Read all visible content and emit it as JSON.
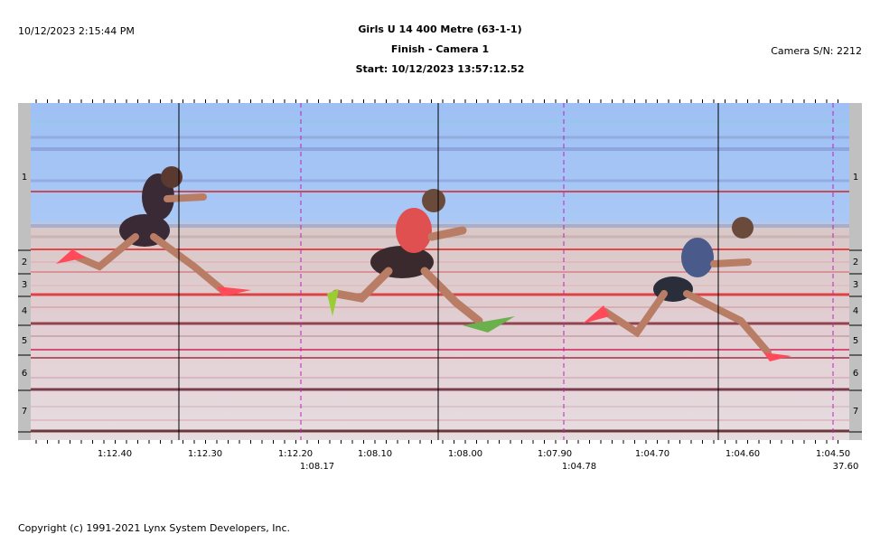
{
  "header": {
    "timestamp": "10/12/2023 2:15:44 PM",
    "title": "Girls U 14 400 Metre (63-1-1)",
    "subtitle": "Finish - Camera 1",
    "start": "Start: 10/12/2023 13:57:12.52",
    "camera": "Camera S/N: 2212"
  },
  "lanes": [
    "1",
    "2",
    "3",
    "4",
    "5",
    "6",
    "7"
  ],
  "time_labels": [
    "1:12.40",
    "1:12.30",
    "1:12.20",
    "1:08.10",
    "1:08.00",
    "1:07.90",
    "1:04.70",
    "1:04.60",
    "1:04.50"
  ],
  "split_labels": [
    "1:08.17",
    "1:04.78",
    "37.60"
  ],
  "footer": "Copyright (c) 1991-2021 Lynx System Developers, Inc."
}
